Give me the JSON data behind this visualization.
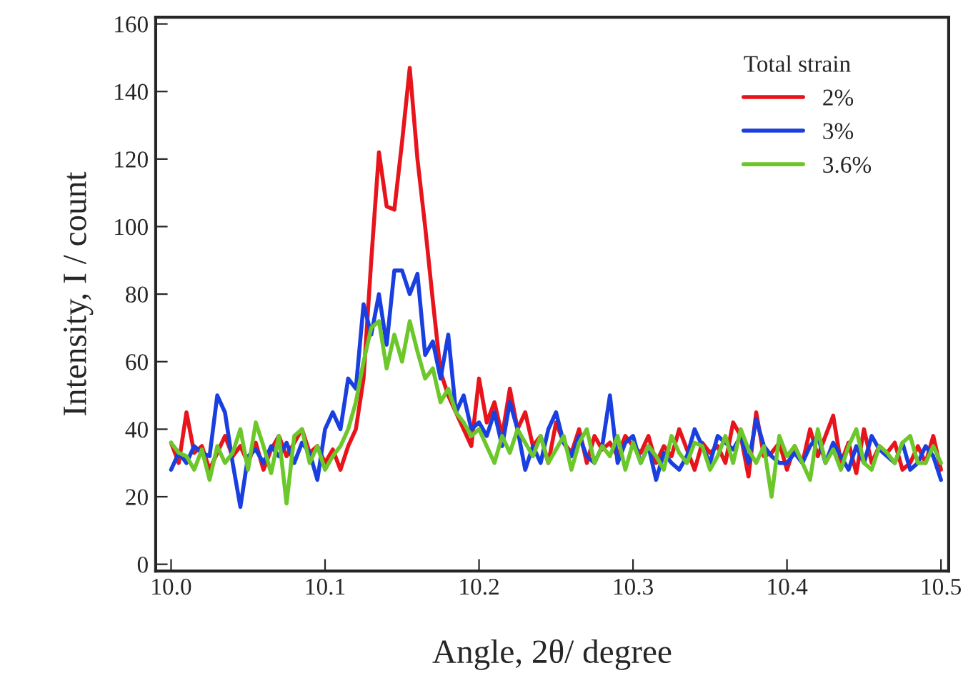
{
  "chart_data": {
    "type": "line",
    "xlabel": "Angle, 2θ/ degree",
    "ylabel": "Intensity, I / count",
    "legend_title": "Total strain",
    "x": [
      10.0,
      10.005,
      10.01,
      10.015,
      10.02,
      10.025,
      10.03,
      10.035,
      10.04,
      10.045,
      10.05,
      10.055,
      10.06,
      10.065,
      10.07,
      10.075,
      10.08,
      10.085,
      10.09,
      10.095,
      10.1,
      10.105,
      10.11,
      10.115,
      10.12,
      10.125,
      10.13,
      10.135,
      10.14,
      10.145,
      10.15,
      10.155,
      10.16,
      10.165,
      10.17,
      10.175,
      10.18,
      10.185,
      10.19,
      10.195,
      10.2,
      10.205,
      10.21,
      10.215,
      10.22,
      10.225,
      10.23,
      10.235,
      10.24,
      10.245,
      10.25,
      10.255,
      10.26,
      10.265,
      10.27,
      10.275,
      10.28,
      10.285,
      10.29,
      10.295,
      10.3,
      10.305,
      10.31,
      10.315,
      10.32,
      10.325,
      10.33,
      10.335,
      10.34,
      10.345,
      10.35,
      10.355,
      10.36,
      10.365,
      10.37,
      10.375,
      10.38,
      10.385,
      10.39,
      10.395,
      10.4,
      10.405,
      10.41,
      10.415,
      10.42,
      10.425,
      10.43,
      10.435,
      10.44,
      10.445,
      10.45,
      10.455,
      10.46,
      10.465,
      10.47,
      10.475,
      10.48,
      10.485,
      10.49,
      10.495,
      10.5
    ],
    "series": [
      {
        "name": "2%",
        "color": "#e8141c",
        "values": [
          36,
          30,
          45,
          33,
          35,
          28,
          33,
          38,
          32,
          35,
          30,
          36,
          28,
          34,
          38,
          32,
          36,
          40,
          33,
          35,
          30,
          34,
          28,
          35,
          40,
          55,
          90,
          122,
          106,
          105,
          125,
          147,
          120,
          100,
          78,
          57,
          50,
          45,
          40,
          35,
          55,
          42,
          48,
          38,
          52,
          40,
          45,
          35,
          38,
          30,
          42,
          36,
          33,
          40,
          30,
          38,
          34,
          36,
          32,
          38,
          35,
          33,
          38,
          30,
          35,
          32,
          40,
          34,
          28,
          36,
          33,
          35,
          30,
          42,
          38,
          26,
          45,
          32,
          33,
          36,
          28,
          35,
          30,
          40,
          32,
          38,
          44,
          30,
          36,
          27,
          40,
          30,
          35,
          33,
          36,
          28,
          30,
          35,
          30,
          38,
          28
        ]
      },
      {
        "name": "3%",
        "color": "#1a3fe0",
        "values": [
          28,
          33,
          30,
          35,
          33,
          32,
          50,
          45,
          30,
          17,
          32,
          34,
          30,
          35,
          32,
          36,
          30,
          36,
          33,
          25,
          40,
          45,
          40,
          55,
          52,
          77,
          68,
          80,
          65,
          87,
          87,
          80,
          86,
          62,
          66,
          55,
          68,
          45,
          50,
          40,
          42,
          38,
          45,
          35,
          48,
          40,
          28,
          35,
          30,
          40,
          45,
          36,
          32,
          38,
          32,
          30,
          35,
          50,
          30,
          36,
          38,
          30,
          35,
          25,
          33,
          30,
          28,
          32,
          40,
          35,
          30,
          38,
          36,
          34,
          38,
          30,
          43,
          35,
          32,
          30,
          30,
          33,
          30,
          35,
          38,
          30,
          36,
          32,
          28,
          35,
          30,
          38,
          34,
          32,
          30,
          36,
          28,
          30,
          35,
          32,
          25
        ]
      },
      {
        "name": "3.6%",
        "color": "#6cc72a",
        "values": [
          36,
          33,
          32,
          28,
          34,
          25,
          35,
          30,
          33,
          40,
          28,
          42,
          35,
          27,
          38,
          18,
          38,
          40,
          30,
          35,
          28,
          32,
          35,
          40,
          48,
          60,
          70,
          72,
          58,
          68,
          60,
          72,
          63,
          55,
          58,
          48,
          52,
          45,
          42,
          38,
          40,
          35,
          30,
          38,
          33,
          40,
          36,
          32,
          38,
          30,
          34,
          38,
          28,
          36,
          40,
          30,
          35,
          32,
          38,
          28,
          36,
          30,
          35,
          32,
          28,
          38,
          33,
          30,
          36,
          35,
          28,
          32,
          38,
          30,
          40,
          34,
          30,
          35,
          20,
          38,
          32,
          35,
          30,
          25,
          40,
          30,
          34,
          28,
          35,
          40,
          30,
          28,
          35,
          33,
          30,
          36,
          38,
          30,
          30,
          35,
          30
        ]
      }
    ],
    "xlim": [
      9.99,
      10.505
    ],
    "ylim": [
      -2,
      162
    ],
    "xticks": [
      {
        "value": 10.0,
        "label": "10.0"
      },
      10.1,
      10.2,
      10.3,
      10.4,
      10.5
    ],
    "yticks": [
      0,
      20,
      40,
      60,
      80,
      100,
      120,
      140,
      160
    ],
    "grid": false,
    "legend": "top right",
    "line_style": "solid",
    "marker": "none"
  }
}
